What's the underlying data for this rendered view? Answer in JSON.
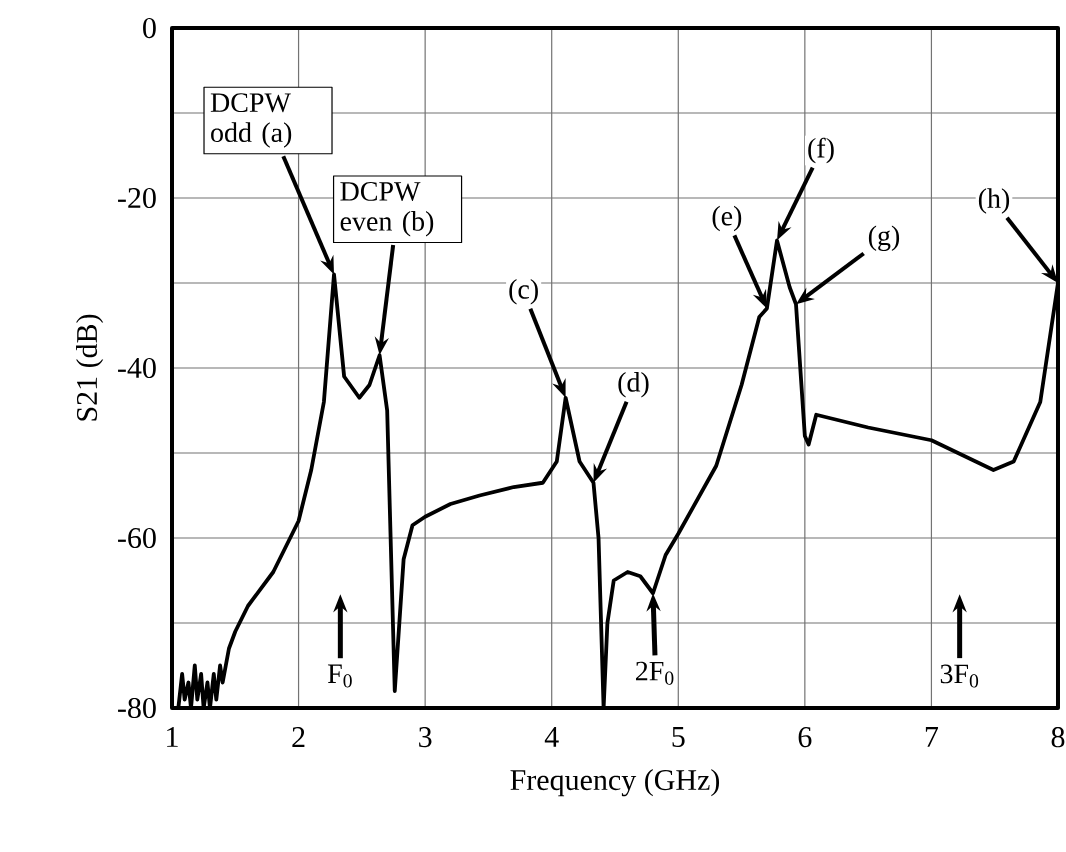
{
  "chart_data": {
    "type": "line",
    "xlabel": "Frequency (GHz)",
    "ylabel": "S21 (dB)",
    "xlim": [
      1,
      8
    ],
    "ylim": [
      -80,
      0
    ],
    "xticks": [
      1,
      2,
      3,
      4,
      5,
      6,
      7,
      8
    ],
    "yticks": [
      -80,
      {
        "value": -70,
        "label": null
      },
      -60,
      {
        "value": -50,
        "label": null
      },
      -40,
      {
        "value": -30,
        "label": null
      },
      -20,
      {
        "value": -10,
        "label": null
      },
      0
    ],
    "grid": true,
    "series": [
      {
        "color": "#000000",
        "x": [
          1.05,
          1.08,
          1.1,
          1.13,
          1.15,
          1.18,
          1.2,
          1.23,
          1.25,
          1.28,
          1.3,
          1.33,
          1.35,
          1.38,
          1.4,
          1.45,
          1.5,
          1.6,
          1.7,
          1.8,
          1.9,
          2.0,
          2.1,
          2.2,
          2.28,
          2.36,
          2.48,
          2.56,
          2.64,
          2.7,
          2.76,
          2.83,
          2.9,
          3.0,
          3.2,
          3.43,
          3.7,
          3.93,
          4.04,
          4.11,
          4.22,
          4.33,
          4.37,
          4.41,
          4.44,
          4.49,
          4.6,
          4.7,
          4.8,
          4.9,
          5.0,
          5.3,
          5.5,
          5.64,
          5.7,
          5.78,
          5.88,
          5.93,
          6.0,
          6.03,
          6.09,
          6.5,
          7.0,
          7.49,
          7.65,
          7.86,
          8.0
        ],
        "values": [
          -80,
          -76,
          -79,
          -77,
          -80,
          -75,
          -79,
          -76,
          -80,
          -77,
          -80,
          -76,
          -79,
          -75,
          -77,
          -73,
          -71,
          -68,
          -66,
          -64,
          -61,
          -58,
          -52,
          -44,
          -29,
          -41,
          -43.5,
          -42,
          -38.5,
          -45,
          -78,
          -62.5,
          -58.5,
          -57.5,
          -56,
          -55,
          -54,
          -53.5,
          -51,
          -43.5,
          -51,
          -53.5,
          -60,
          -80,
          -70,
          -65,
          -64,
          -64.5,
          -66.5,
          -62,
          -59.5,
          -51.5,
          -42,
          -34,
          -33,
          -25,
          -30.5,
          -32.5,
          -48,
          -49,
          -45.5,
          -47,
          -48.5,
          -52,
          -51,
          -44,
          -30
        ]
      }
    ],
    "annotations": [
      {
        "text": "DCPW odd (a)",
        "x": 2.28,
        "y": -29
      },
      {
        "text": "DCPW even (b)",
        "x": 2.64,
        "y": -38.5
      },
      {
        "text": "(c)",
        "x": 4.11,
        "y": -43.5
      },
      {
        "text": "(d)",
        "x": 4.33,
        "y": -53.5
      },
      {
        "text": "(e)",
        "x": 5.7,
        "y": -33
      },
      {
        "text": "(f)",
        "x": 5.78,
        "y": -25
      },
      {
        "text": "(g)",
        "x": 5.93,
        "y": -32.5
      },
      {
        "text": "(h)",
        "x": 8.0,
        "y": -30
      },
      "F$_{0}$",
      {
        "text": "2F$_{0}$",
        "x": 4.8,
        "y": -66.5
      },
      "3F$_{0}$"
    ]
  }
}
